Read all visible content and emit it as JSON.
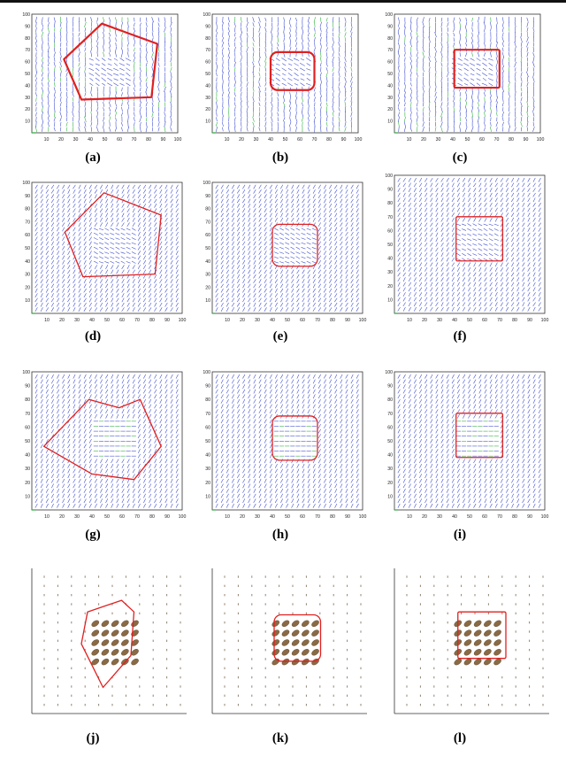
{
  "figure": {
    "panels": [
      {
        "caption": "(a)",
        "field": "noisy",
        "contour": "polygon",
        "contour_width": 2.2,
        "xticks": [
          "10",
          "20",
          "30",
          "40",
          "50",
          "60",
          "70",
          "80",
          "90",
          "100"
        ],
        "yticks": [
          "100",
          "90",
          "80",
          "70",
          "60",
          "50",
          "40",
          "30",
          "20",
          "10"
        ]
      },
      {
        "caption": "(b)",
        "field": "noisy",
        "contour": "rounded",
        "contour_width": 2.2,
        "xticks": [
          "10",
          "20",
          "30",
          "40",
          "50",
          "60",
          "70",
          "80",
          "90",
          "100"
        ],
        "yticks": [
          "100",
          "90",
          "80",
          "70",
          "60",
          "50",
          "40",
          "30",
          "20",
          "10"
        ]
      },
      {
        "caption": "(c)",
        "field": "noisy",
        "contour": "box",
        "contour_width": 2.2,
        "xticks": [
          "10",
          "20",
          "30",
          "40",
          "50",
          "60",
          "70",
          "80",
          "90",
          "100"
        ],
        "yticks": [
          "100",
          "90",
          "80",
          "70",
          "60",
          "50",
          "40",
          "30",
          "20",
          "10"
        ]
      },
      {
        "caption": "(d)",
        "field": "diag",
        "contour": "polygon",
        "contour_width": 1.3,
        "xticks": [
          "10",
          "20",
          "30",
          "40",
          "50",
          "60",
          "70",
          "80",
          "90",
          "100"
        ],
        "yticks": [
          "100",
          "90",
          "80",
          "70",
          "60",
          "50",
          "40",
          "30",
          "20",
          "10"
        ]
      },
      {
        "caption": "(e)",
        "field": "diag",
        "contour": "rounded",
        "contour_width": 1.3,
        "xticks": [
          "10",
          "20",
          "30",
          "40",
          "50",
          "60",
          "70",
          "80",
          "90",
          "100"
        ],
        "yticks": [
          "100",
          "90",
          "80",
          "70",
          "60",
          "50",
          "40",
          "30",
          "20",
          "10"
        ]
      },
      {
        "caption": "(f)",
        "field": "diag",
        "contour": "box",
        "contour_width": 1.3,
        "xticks": [
          "10",
          "20",
          "30",
          "40",
          "50",
          "60",
          "70",
          "80",
          "90",
          "100"
        ],
        "yticks": [
          "100",
          "90",
          "80",
          "70",
          "60",
          "50",
          "40",
          "30",
          "20",
          "10"
        ]
      },
      {
        "caption": "(g)",
        "field": "horiz",
        "contour": "polygon",
        "contour_width": 1.3,
        "xticks": [
          "10",
          "20",
          "30",
          "40",
          "50",
          "60",
          "70",
          "80",
          "90",
          "100"
        ],
        "yticks": [
          "100",
          "90",
          "80",
          "70",
          "60",
          "50",
          "40",
          "30",
          "20",
          "10"
        ]
      },
      {
        "caption": "(h)",
        "field": "horiz",
        "contour": "rounded",
        "contour_width": 1.3,
        "xticks": [
          "10",
          "20",
          "30",
          "40",
          "50",
          "60",
          "70",
          "80",
          "90",
          "100"
        ],
        "yticks": [
          "100",
          "90",
          "80",
          "70",
          "60",
          "50",
          "40",
          "30",
          "20",
          "10"
        ]
      },
      {
        "caption": "(i)",
        "field": "horiz",
        "contour": "box",
        "contour_width": 1.3,
        "xticks": [
          "10",
          "20",
          "30",
          "40",
          "50",
          "60",
          "70",
          "80",
          "90",
          "100"
        ],
        "yticks": [
          "100",
          "90",
          "80",
          "70",
          "60",
          "50",
          "40",
          "30",
          "20",
          "10"
        ]
      },
      {
        "caption": "(j)",
        "field": "ellipse",
        "contour": "polygon",
        "contour_width": 1.3,
        "xticks": [],
        "yticks": []
      },
      {
        "caption": "(k)",
        "field": "ellipse",
        "contour": "rounded",
        "contour_width": 1.3,
        "xticks": [],
        "yticks": []
      },
      {
        "caption": "(l)",
        "field": "ellipse",
        "contour": "box",
        "contour_width": 1.3,
        "xticks": [],
        "yticks": []
      }
    ],
    "colors": {
      "arrow": "#3344cc",
      "arrow_tail": "#22aa33",
      "contour": "#e02020",
      "blob_fill": "#8a6a45",
      "blob_stroke": "#5a4228",
      "dot": "#6b5a40",
      "axis": "#333333",
      "axis_green": "#22aa33"
    }
  }
}
